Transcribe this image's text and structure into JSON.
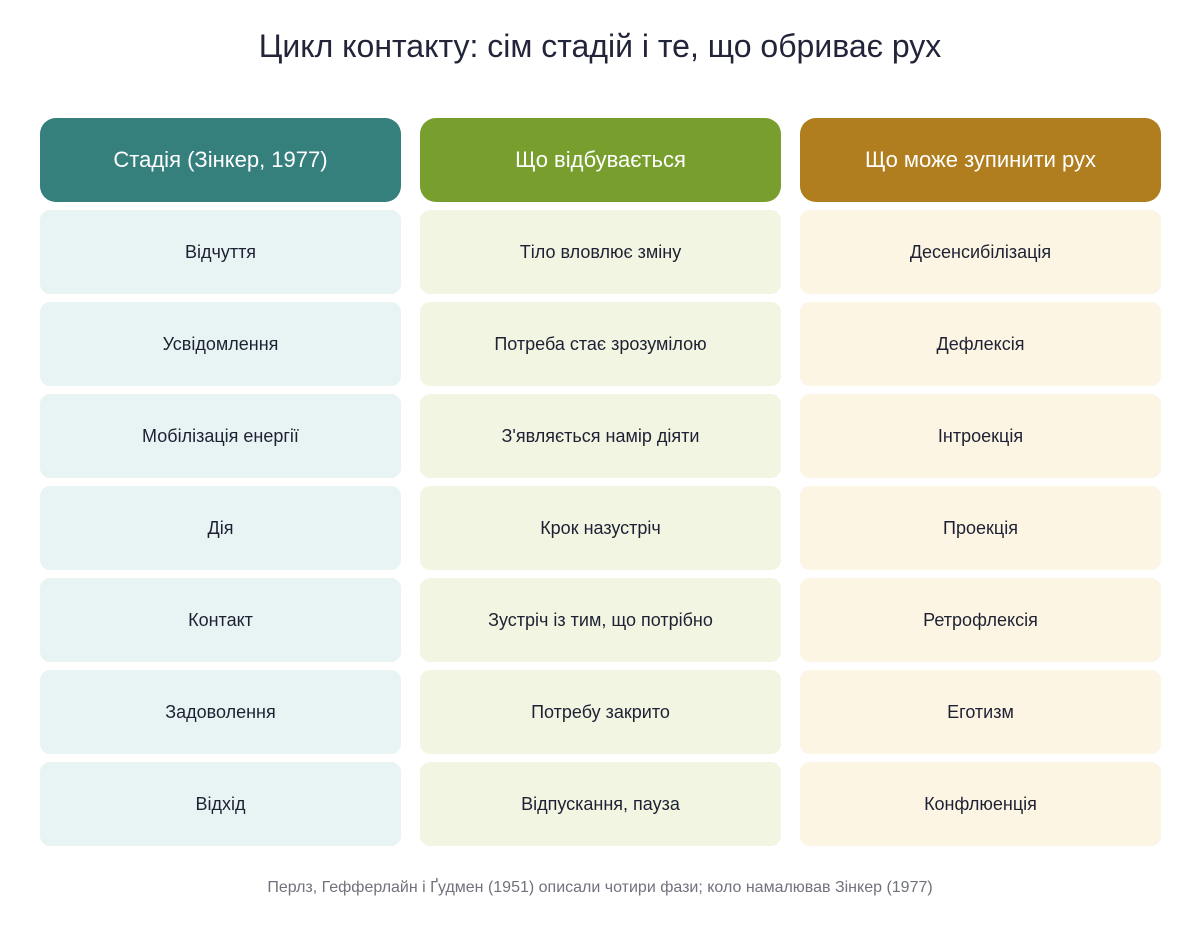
{
  "title": "Цикл контакту: сім стадій і те, що обриває рух",
  "columns": [
    {
      "header": "Стадія (Зінкер, 1977)",
      "color": "#357f7d",
      "cells": [
        "Відчуття",
        "Усвідомлення",
        "Мобілізація енергії",
        "Дія",
        "Контакт",
        "Задоволення",
        "Відхід"
      ]
    },
    {
      "header": "Що відбувається",
      "color": "#789f2e",
      "cells": [
        "Тіло вловлює зміну",
        "Потреба стає зрозумілою",
        "З'являється намір діяти",
        "Крок назустріч",
        "Зустріч із тим, що потрібно",
        "Потребу закрито",
        "Відпускання, пауза"
      ]
    },
    {
      "header": "Що може зупинити рух",
      "color": "#b07d1f",
      "cells": [
        "Десенсибілізація",
        "Дефлексія",
        "Інтроекція",
        "Проекція",
        "Ретрофлексія",
        "Еготизм",
        "Конфлюенція"
      ]
    }
  ],
  "footnote": "Перлз, Гефферлайн і Ґудмен (1951) описали чотири фази; коло намалював Зінкер (1977)"
}
